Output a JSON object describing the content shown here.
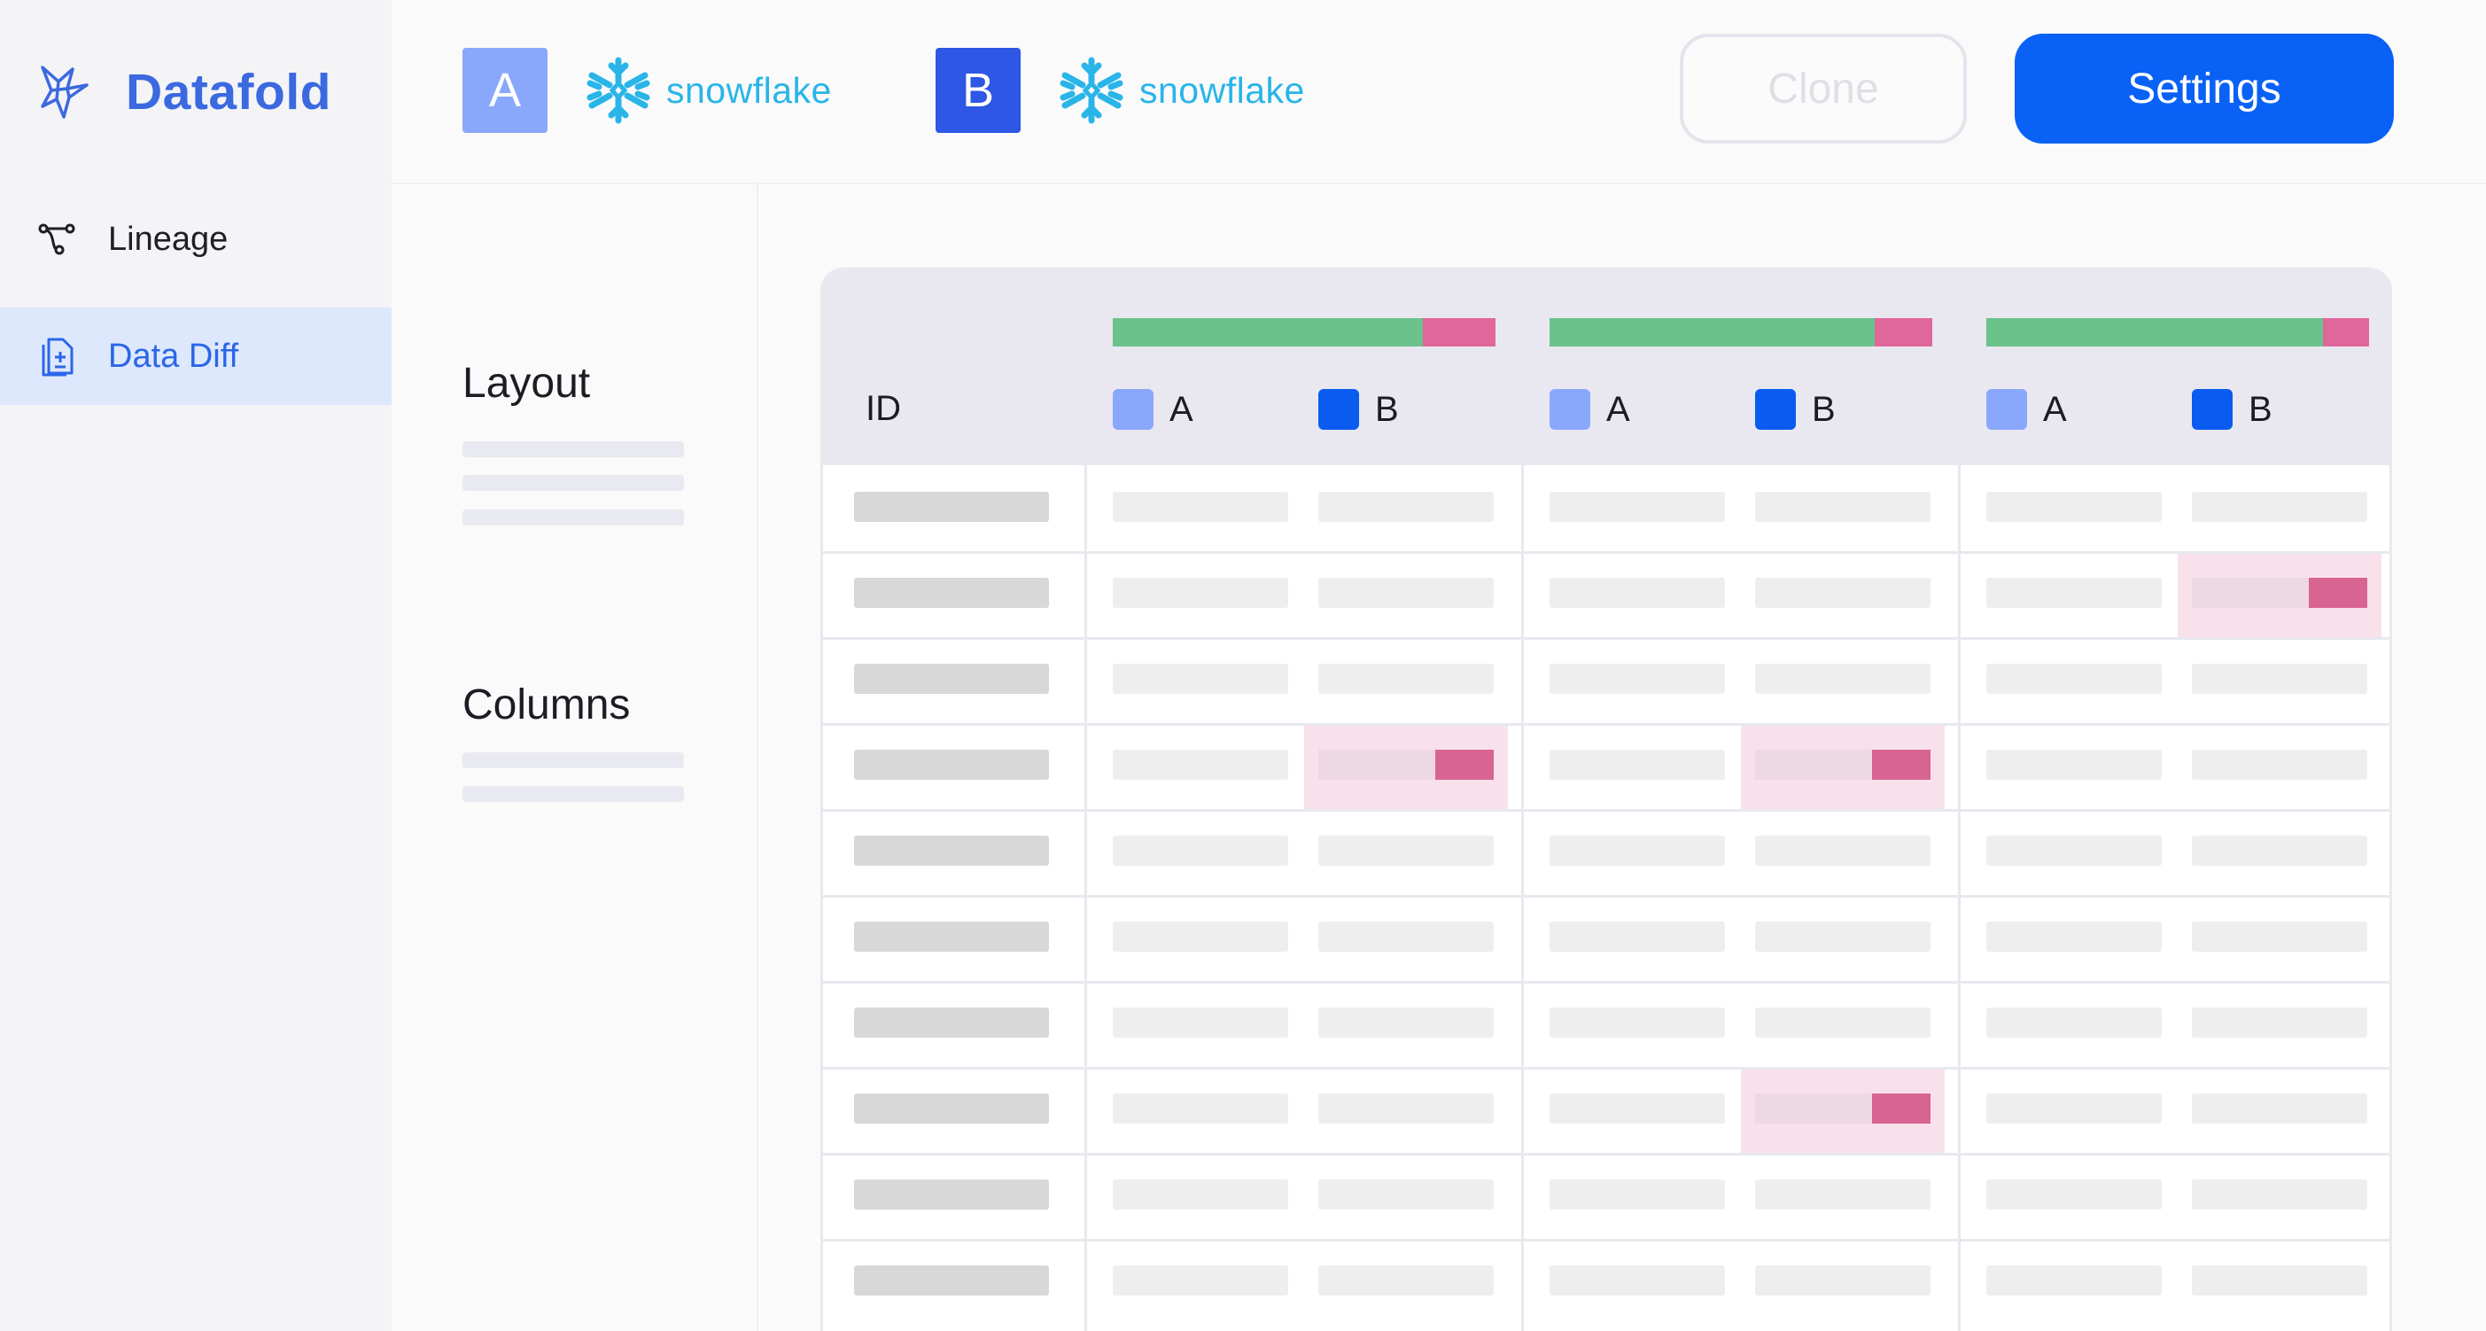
{
  "sidebar": {
    "brand": "Datafold",
    "items": [
      {
        "label": "Lineage",
        "icon": "lineage-icon",
        "active": false
      },
      {
        "label": "Data Diff",
        "icon": "file-diff-icon",
        "active": true
      }
    ]
  },
  "header": {
    "connection_a": {
      "badge": "A",
      "warehouse": "snowflake"
    },
    "connection_b": {
      "badge": "B",
      "warehouse": "snowflake"
    },
    "clone_label": "Clone",
    "settings_label": "Settings"
  },
  "panel": {
    "layout_title": "Layout",
    "columns_title": "Columns"
  },
  "grid": {
    "id_header": "ID",
    "column_groups": [
      {
        "a_label": "A",
        "b_label": "B",
        "match_fraction": 0.81
      },
      {
        "a_label": "A",
        "b_label": "B",
        "match_fraction": 0.85
      },
      {
        "a_label": "A",
        "b_label": "B",
        "match_fraction": 0.88
      }
    ],
    "row_count": 10,
    "diff_cells": [
      {
        "row": 1,
        "group": 2
      },
      {
        "row": 3,
        "group": 0
      },
      {
        "row": 3,
        "group": 1
      },
      {
        "row": 7,
        "group": 1
      }
    ]
  },
  "colors": {
    "brand": "#3b69e0",
    "primary_button": "#0961f6",
    "source_a": "#8aa8fb",
    "source_b": "#0a5cf0",
    "match": "#6bc28a",
    "mismatch": "#e0679a",
    "snowflake": "#29b5e8"
  }
}
